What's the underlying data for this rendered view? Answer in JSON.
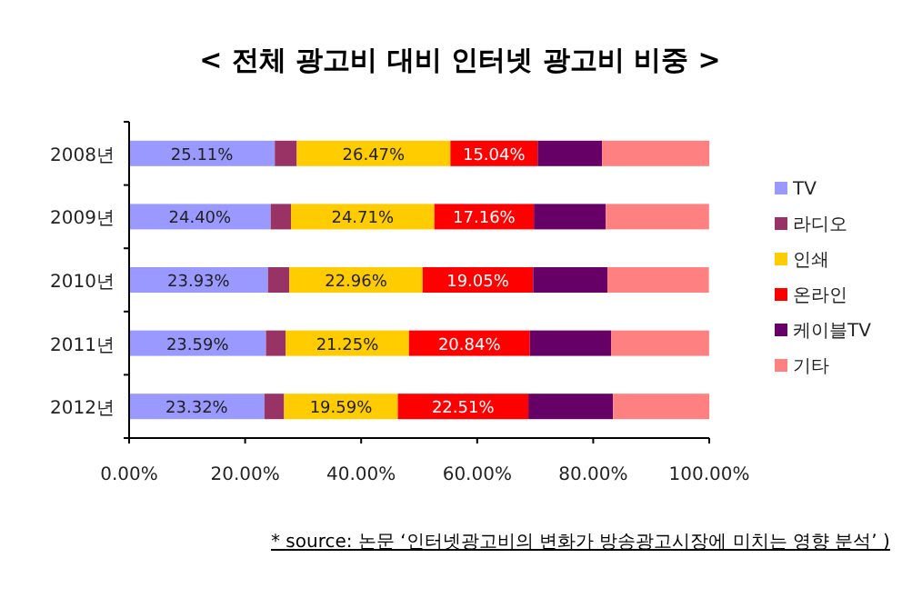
{
  "chart_data": {
    "type": "bar",
    "orientation": "horizontal",
    "stacked": true,
    "title": "< 전체 광고비 대비 인터넷 광고비 비중 >",
    "categories": [
      "2008년",
      "2009년",
      "2010년",
      "2011년",
      "2012년"
    ],
    "xlim": [
      0,
      100
    ],
    "xticks": [
      {
        "value": 0,
        "label": "0.00%"
      },
      {
        "value": 20,
        "label": "20.00%"
      },
      {
        "value": 40,
        "label": "40.00%"
      },
      {
        "value": 60,
        "label": "60.00%"
      },
      {
        "value": 80,
        "label": "80.00%"
      },
      {
        "value": 100,
        "label": "100.00%"
      }
    ],
    "grid": false,
    "legend": "right",
    "series": [
      {
        "name": "TV",
        "color": "#9999ff",
        "values": [
          25.11,
          24.4,
          23.93,
          23.59,
          23.32
        ],
        "value_labels": [
          "25.11%",
          "24.40%",
          "23.93%",
          "23.59%",
          "23.32%"
        ]
      },
      {
        "name": "라디오",
        "color": "#993366",
        "values": [
          3.8,
          3.5,
          3.7,
          3.4,
          3.4
        ]
      },
      {
        "name": "인쇄",
        "color": "#ffcc00",
        "values": [
          26.47,
          24.71,
          22.96,
          21.25,
          19.59
        ],
        "value_labels": [
          "26.47%",
          "24.71%",
          "22.96%",
          "21.25%",
          "19.59%"
        ]
      },
      {
        "name": "온라인",
        "color": "#ff0000",
        "values": [
          15.04,
          17.16,
          19.05,
          20.84,
          22.51
        ],
        "value_labels": [
          "15.04%",
          "17.16%",
          "19.05%",
          "20.84%",
          "22.51%"
        ]
      },
      {
        "name": "케이블TV",
        "color": "#660066",
        "values": [
          11.1,
          12.4,
          12.8,
          14.0,
          14.6
        ]
      },
      {
        "name": "기타",
        "color": "#ff8080",
        "values": [
          18.5,
          17.8,
          17.5,
          16.9,
          16.6
        ]
      }
    ],
    "annotations": [
      "* source: 논문 ‘인터넷광고비의 변화가 방송광고시장에 미치는 영향 분석’ )"
    ]
  }
}
